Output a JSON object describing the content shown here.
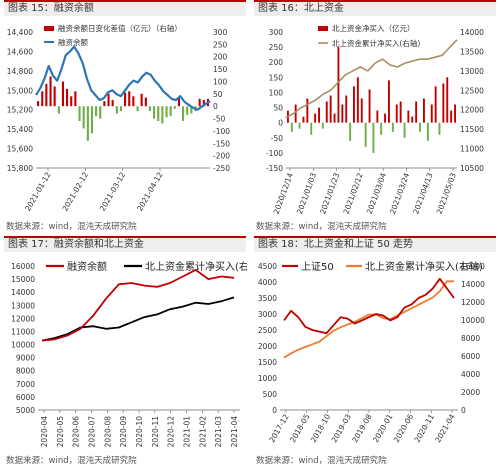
{
  "panels": [
    {
      "title": "图表 15：融资余额",
      "source": "数据来源：wind，混沌天成研究院"
    },
    {
      "title": "图表 16：北上资金",
      "source": "数据来源：wind，混沌天成研究院"
    },
    {
      "title": "图表 17：融资余额和北上资金",
      "source": "数据来源：wind，混沌天成研究院"
    },
    {
      "title": "图表 18：北上资金和上证 50 走势",
      "source": "数据来源：wind，混沌天成研究院"
    }
  ],
  "colors": {
    "red": "#c00000",
    "blue": "#2e75b6",
    "green": "#70ad47",
    "black": "#000000",
    "orange": "#ed7d31",
    "olive": "#a6905e"
  },
  "chart_data": [
    {
      "type": "bar+line",
      "legend": [
        "融资余额日变化差值（亿元）（右轴）",
        "融资余额"
      ],
      "x_ticks": [
        "2021-01-12",
        "2021-02-12",
        "2021-03-12",
        "2021-04-12"
      ],
      "y_left": {
        "ticks": [
          "14,400",
          "14,600",
          "14,800",
          "15,000",
          "15,200",
          "15,400",
          "15,600",
          "15,800"
        ],
        "range": [
          14400,
          15800
        ]
      },
      "y_right": {
        "ticks": [
          "300",
          "250",
          "200",
          "150",
          "100",
          "50",
          "0",
          "-50",
          "-100",
          "-150",
          "-200",
          "-250"
        ],
        "range": [
          -250,
          300
        ]
      },
      "series": [
        {
          "name": "融资余额",
          "axis": "left",
          "values": [
            15150,
            15220,
            15320,
            15450,
            15350,
            15300,
            15420,
            15560,
            15600,
            15650,
            15580,
            15480,
            15320,
            15200,
            15150,
            15100,
            15120,
            15180,
            15200,
            15160,
            15140,
            15200,
            15260,
            15300,
            15280,
            15340,
            15380,
            15360,
            15300,
            15250,
            15190,
            15150,
            15110,
            15100,
            15140,
            15080,
            15050,
            15020,
            15000,
            15030,
            15060,
            15090
          ]
        },
        {
          "name": "融资余额日变化差值（亿元）（右轴）",
          "axis": "right",
          "values": [
            20,
            60,
            90,
            120,
            80,
            -30,
            100,
            70,
            40,
            60,
            -60,
            -90,
            -140,
            -110,
            -40,
            -50,
            20,
            50,
            25,
            -30,
            -20,
            55,
            60,
            40,
            -20,
            50,
            35,
            -20,
            -50,
            -60,
            -70,
            -45,
            -40,
            -10,
            35,
            -60,
            -35,
            -30,
            -20,
            30,
            25,
            30
          ]
        }
      ]
    },
    {
      "type": "bar+line",
      "legend": [
        "北上资金净买入（亿元）",
        "北上资金累计净买入(右轴)"
      ],
      "x_ticks": [
        "2020/12/14",
        "2021/01/03",
        "2021/01/23",
        "2021/02/12",
        "2021/03/04",
        "2021/03/24",
        "2021/04/13",
        "2021/05/03"
      ],
      "y_left": {
        "ticks": [
          "300",
          "250",
          "200",
          "150",
          "100",
          "50",
          "0",
          "-50",
          "-100",
          "-150"
        ],
        "range": [
          -150,
          300
        ]
      },
      "y_right": {
        "ticks": [
          "14000",
          "13500",
          "13000",
          "12500",
          "12000",
          "11500",
          "11000",
          "10500"
        ],
        "range": [
          10500,
          14000
        ]
      },
      "series": [
        {
          "name": "北上资金净买入（亿元）",
          "axis": "left",
          "values": [
            40,
            -30,
            60,
            -20,
            20,
            80,
            -40,
            30,
            50,
            -20,
            70,
            90,
            30,
            250,
            60,
            90,
            -60,
            120,
            150,
            80,
            -80,
            110,
            -100,
            40,
            -40,
            30,
            140,
            -30,
            60,
            70,
            -50,
            40,
            20,
            70,
            -30,
            80,
            -60,
            60,
            120,
            -40,
            130,
            150,
            40,
            60
          ]
        },
        {
          "name": "北上资金累计净买入(右轴)",
          "axis": "right",
          "values": [
            11800,
            11900,
            12050,
            12150,
            12250,
            12400,
            12500,
            12700,
            12900,
            13000,
            13100,
            13000,
            13200,
            13300,
            13150,
            13100,
            13200,
            13250,
            13300,
            13300,
            13350,
            13400,
            13600,
            13800
          ]
        }
      ]
    },
    {
      "type": "line",
      "legend": [
        "融资余额",
        "北上资金累计净买入(右轴)"
      ],
      "x_ticks": [
        "2020-04",
        "2020-05",
        "2020-06",
        "2020-07",
        "2020-08",
        "2020-09",
        "2020-10",
        "2020-11",
        "2020-12",
        "2021-01",
        "2021-02",
        "2021-03",
        "2021-04"
      ],
      "y_left": {
        "ticks": [
          "16000",
          "15000",
          "14000",
          "13000",
          "12000",
          "11000",
          "10000",
          "9000",
          "8000",
          "7000",
          "6000",
          "5000"
        ],
        "range": [
          5000,
          16000
        ]
      },
      "series": [
        {
          "name": "融资余额",
          "values": [
            10300,
            10400,
            10700,
            11200,
            12200,
            13500,
            14600,
            14700,
            14500,
            14400,
            14700,
            15200,
            15700,
            15000,
            15200,
            15100
          ]
        },
        {
          "name": "北上资金累计净买入(右轴)",
          "values": [
            10300,
            10500,
            10800,
            11300,
            11400,
            11200,
            11300,
            11700,
            12100,
            12300,
            12700,
            12900,
            13200,
            13100,
            13300,
            13600
          ]
        }
      ]
    },
    {
      "type": "line",
      "legend": [
        "上证50",
        "北上资金累计净买入(右轴)"
      ],
      "x_ticks": [
        "2017-12",
        "2018-05",
        "2018-10",
        "2019-03",
        "2019-08",
        "2020-01",
        "2020-06",
        "2020-11",
        "2021-04"
      ],
      "y_left": {
        "ticks": [
          "4500",
          "4000",
          "3500",
          "3000",
          "2500",
          "2000",
          "1500",
          "1000",
          "500",
          "0"
        ],
        "range": [
          0,
          4500
        ]
      },
      "y_right": {
        "ticks": [
          "16000",
          "14000",
          "12000",
          "10000",
          "8000",
          "6000",
          "4000",
          "2000",
          "0"
        ],
        "range": [
          0,
          16000
        ]
      },
      "series": [
        {
          "name": "上证50",
          "axis": "left",
          "values": [
            2800,
            3100,
            2900,
            2600,
            2500,
            2450,
            2400,
            2650,
            2900,
            2850,
            2700,
            2800,
            2900,
            3000,
            2950,
            2800,
            2900,
            3200,
            3300,
            3500,
            3600,
            3800,
            4100,
            3800,
            3500
          ]
        },
        {
          "name": "北上资金累计净买入(右轴)",
          "axis": "right",
          "values": [
            5800,
            6300,
            6700,
            7000,
            7300,
            7600,
            8200,
            8800,
            9200,
            9500,
            9800,
            10200,
            10600,
            10600,
            10200,
            10100,
            10500,
            10900,
            11300,
            11700,
            12100,
            12500,
            13200,
            14300,
            14300
          ]
        }
      ]
    }
  ]
}
